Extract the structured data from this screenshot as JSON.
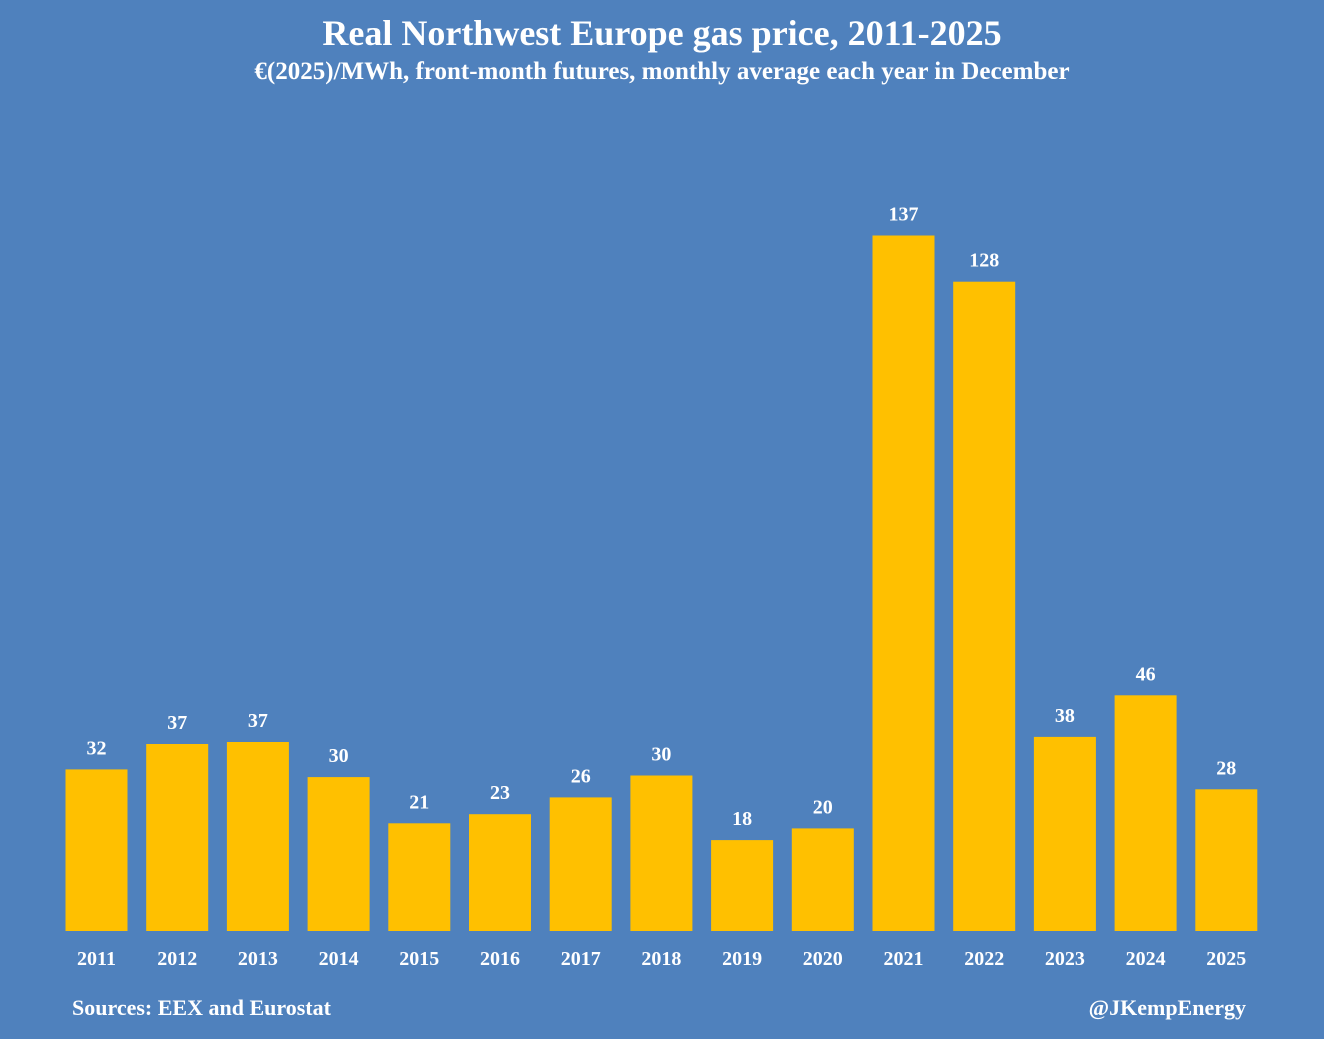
{
  "chart_data": {
    "type": "bar",
    "title": "Real Northwest Europe gas price, 2011-2025",
    "subtitle": "€(2025)/MWh, front-month futures, monthly average each year in December",
    "categories": [
      "2011",
      "2012",
      "2013",
      "2014",
      "2015",
      "2016",
      "2017",
      "2018",
      "2019",
      "2020",
      "2021",
      "2022",
      "2023",
      "2024",
      "2025"
    ],
    "values": [
      32,
      37,
      37,
      30,
      21,
      23,
      26,
      30,
      18,
      20,
      137,
      128,
      38,
      46,
      28
    ],
    "value_heights": [
      31.8,
      36.8,
      37.2,
      30.3,
      21.2,
      23.0,
      26.3,
      30.6,
      17.9,
      20.2,
      136.9,
      127.8,
      38.2,
      46.4,
      27.9
    ],
    "xlabel": "",
    "ylabel": "",
    "ylim": [
      0,
      137
    ],
    "grid": false,
    "legend": "none",
    "bar_color": "#ffc000",
    "source": "Sources: EEX and Eurostat",
    "credit": "@JKempEnergy"
  },
  "colors": {
    "background": "#4f81bd",
    "bar": "#ffc000",
    "text": "#ffffff"
  }
}
